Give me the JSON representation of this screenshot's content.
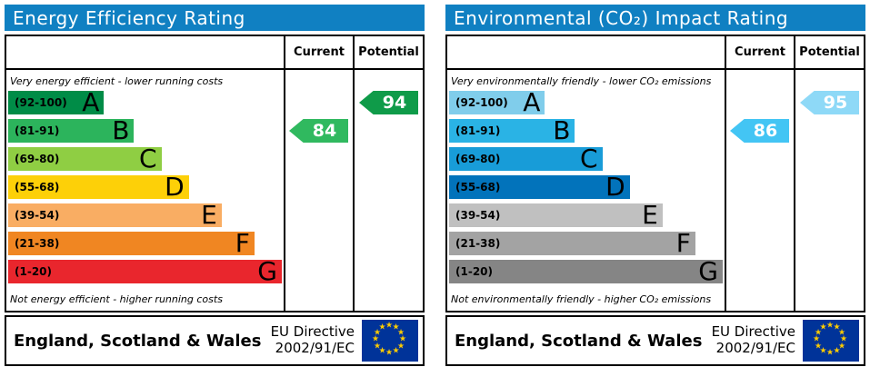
{
  "chart_data": [
    {
      "type": "bar",
      "title": "Energy Efficiency Rating",
      "top_caption": "Very energy efficient - lower running costs",
      "bottom_caption": "Not energy efficient - higher running costs",
      "categories": [
        "A (92-100)",
        "B (81-91)",
        "C (69-80)",
        "D (55-68)",
        "E (39-54)",
        "F (21-38)",
        "G (1-20)"
      ],
      "band_relative_widths_pct": [
        35,
        46,
        56,
        66,
        78,
        90,
        100
      ],
      "current": 84,
      "current_band": "B",
      "potential": 94,
      "potential_band": "A",
      "scale": [
        1,
        100
      ],
      "legend_position": "none",
      "columns": [
        "Current",
        "Potential"
      ]
    },
    {
      "type": "bar",
      "title": "Environmental (CO₂) Impact Rating",
      "top_caption": "Very environmentally friendly - lower CO₂ emissions",
      "bottom_caption": "Not environmentally friendly - higher CO₂ emissions",
      "categories": [
        "A (92-100)",
        "B (81-91)",
        "C (69-80)",
        "D (55-68)",
        "E (39-54)",
        "F (21-38)",
        "G (1-20)"
      ],
      "band_relative_widths_pct": [
        35,
        46,
        56,
        66,
        78,
        90,
        100
      ],
      "current": 86,
      "current_band": "B",
      "potential": 95,
      "potential_band": "A",
      "scale": [
        1,
        100
      ],
      "legend_position": "none",
      "columns": [
        "Current",
        "Potential"
      ]
    }
  ],
  "panels": [
    {
      "title": "Energy Efficiency Rating",
      "header_color": "#1080c2",
      "col_current": "Current",
      "col_potential": "Potential",
      "top_caption": "Very energy efficient - lower running costs",
      "bottom_caption": "Not energy efficient - higher running costs",
      "bands": [
        {
          "range": "(92-100)",
          "letter": "A",
          "color": "#008c47",
          "width_pct": 35
        },
        {
          "range": "(81-91)",
          "letter": "B",
          "color": "#2cb45c",
          "width_pct": 46
        },
        {
          "range": "(69-80)",
          "letter": "C",
          "color": "#8fce43",
          "width_pct": 56
        },
        {
          "range": "(55-68)",
          "letter": "D",
          "color": "#fdd008",
          "width_pct": 66
        },
        {
          "range": "(39-54)",
          "letter": "E",
          "color": "#f9ad63",
          "width_pct": 78
        },
        {
          "range": "(21-38)",
          "letter": "F",
          "color": "#f08622",
          "width_pct": 90
        },
        {
          "range": "(1-20)",
          "letter": "G",
          "color": "#e9262d",
          "width_pct": 100
        }
      ],
      "current": {
        "value": "84",
        "color": "#30b95f",
        "band_index": 1
      },
      "potential": {
        "value": "94",
        "color": "#0f9b49",
        "band_index": 0
      },
      "footer_region": "England, Scotland & Wales",
      "directive_line1": "EU Directive",
      "directive_line2": "2002/91/EC"
    },
    {
      "title": "Environmental (CO₂) Impact Rating",
      "header_color": "#1080c2",
      "col_current": "Current",
      "col_potential": "Potential",
      "top_caption": "Very environmentally friendly - lower CO₂ emissions",
      "bottom_caption": "Not environmentally friendly - higher CO₂ emissions",
      "bands": [
        {
          "range": "(92-100)",
          "letter": "A",
          "color": "#80cdeb",
          "width_pct": 35
        },
        {
          "range": "(81-91)",
          "letter": "B",
          "color": "#2ab3e5",
          "width_pct": 46
        },
        {
          "range": "(69-80)",
          "letter": "C",
          "color": "#189cd8",
          "width_pct": 56
        },
        {
          "range": "(55-68)",
          "letter": "D",
          "color": "#0273bb",
          "width_pct": 66
        },
        {
          "range": "(39-54)",
          "letter": "E",
          "color": "#c0c0c0",
          "width_pct": 78
        },
        {
          "range": "(21-38)",
          "letter": "F",
          "color": "#a3a3a3",
          "width_pct": 90
        },
        {
          "range": "(1-20)",
          "letter": "G",
          "color": "#858585",
          "width_pct": 100
        }
      ],
      "current": {
        "value": "86",
        "color": "#43c5f4",
        "band_index": 1
      },
      "potential": {
        "value": "95",
        "color": "#8ed9f7",
        "band_index": 0
      },
      "footer_region": "England, Scotland & Wales",
      "directive_line1": "EU Directive",
      "directive_line2": "2002/91/EC"
    }
  ],
  "flag": {
    "background": "#003399",
    "star_color": "#ffcc00",
    "star_count": 12
  }
}
